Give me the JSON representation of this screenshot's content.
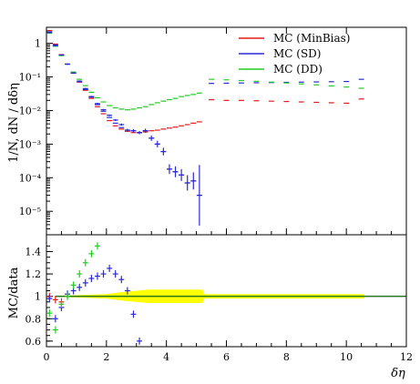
{
  "chart_data": [
    {
      "panel": "main",
      "type": "scatter",
      "ylabel": "1/N, dN / dδη",
      "yscale": "log",
      "xlim": [
        0,
        12
      ],
      "ylim": [
        2e-06,
        3
      ],
      "ytick_labels": [
        "1",
        "10⁻¹",
        "10⁻²",
        "10⁻³",
        "10⁻⁴",
        "10⁻⁵"
      ],
      "ytick_values": [
        1,
        0.1,
        0.01,
        0.001,
        0.0001,
        1e-05
      ],
      "legend_position": "top-right",
      "data_series": {
        "x": [
          0.1,
          0.3,
          0.5,
          0.7,
          0.9,
          1.1,
          1.3,
          1.5,
          1.7,
          1.9,
          2.1,
          2.3,
          2.5,
          2.7,
          2.9,
          3.1,
          3.3,
          3.5,
          3.7,
          3.9,
          4.1,
          4.3,
          4.5,
          4.7,
          4.9,
          5.1
        ],
        "y": [
          2.1,
          0.85,
          0.45,
          0.24,
          0.13,
          0.075,
          0.045,
          0.026,
          0.016,
          0.0105,
          0.0072,
          0.0052,
          0.0038,
          0.0026,
          0.0025,
          0.0022,
          0.0025,
          0.0015,
          0.001,
          0.0006,
          0.00018,
          0.00015,
          0.00012,
          7e-05,
          8e-05,
          3e-05
        ],
        "yerr_factor": [
          1.05,
          1.05,
          1.05,
          1.05,
          1.05,
          1.05,
          1.05,
          1.05,
          1.05,
          1.06,
          1.06,
          1.07,
          1.08,
          1.1,
          1.12,
          1.12,
          1.15,
          1.2,
          1.25,
          1.3,
          1.4,
          1.45,
          1.5,
          1.7,
          1.8,
          8.0
        ]
      },
      "series": [
        {
          "name": "MC (MinBias)",
          "color": "#e41a1c",
          "x": [
            0.1,
            0.3,
            0.5,
            0.7,
            0.9,
            1.1,
            1.3,
            1.5,
            1.7,
            1.9,
            2.1,
            2.3,
            2.5,
            2.7,
            2.9,
            3.1,
            3.3,
            3.5,
            3.7,
            3.9,
            4.1,
            4.3,
            4.5,
            4.7,
            4.9,
            5.1,
            5.5,
            6.0,
            6.5,
            7.0,
            7.5,
            8.0,
            8.5,
            9.0,
            9.5,
            10.0,
            10.5
          ],
          "y": [
            2.4,
            0.95,
            0.46,
            0.24,
            0.13,
            0.07,
            0.04,
            0.023,
            0.013,
            0.008,
            0.005,
            0.0035,
            0.0028,
            0.0024,
            0.0022,
            0.0022,
            0.0023,
            0.0025,
            0.0026,
            0.0028,
            0.003,
            0.0032,
            0.0035,
            0.0038,
            0.0042,
            0.0046,
            0.021,
            0.02,
            0.02,
            0.0195,
            0.019,
            0.0185,
            0.018,
            0.0175,
            0.017,
            0.0165,
            0.022
          ]
        },
        {
          "name": "MC (SD)",
          "color": "#2a2ad4",
          "x": [
            0.1,
            0.3,
            0.5,
            0.7,
            0.9,
            1.1,
            1.3,
            1.5,
            1.7,
            1.9,
            2.1,
            2.3,
            2.5,
            2.7,
            2.9,
            3.1,
            3.3,
            3.5,
            3.7,
            3.9,
            4.1,
            4.3,
            4.5,
            4.7,
            4.9,
            5.1,
            5.5,
            6.0,
            6.5,
            7.0,
            7.5,
            8.0,
            8.5,
            9.0,
            9.5,
            10.0,
            10.5
          ],
          "y": [
            2.2,
            0.9,
            0.45,
            0.24,
            0.13,
            0.072,
            0.042,
            0.025,
            0.015,
            0.0095,
            0.0062,
            0.0042,
            0.0031,
            0.0026,
            0.0025,
            0.0022,
            0.0025,
            0.0015,
            0.001,
            0.0006,
            0.00018,
            0.00015,
            0.00012,
            7e-05,
            8e-05,
            3e-05,
            0.064,
            0.065,
            0.066,
            0.067,
            0.068,
            0.069,
            0.07,
            0.071,
            0.072,
            0.073,
            0.085
          ]
        },
        {
          "name": "MC (DD)",
          "color": "#22cc22",
          "x": [
            0.1,
            0.3,
            0.5,
            0.7,
            0.9,
            1.1,
            1.3,
            1.5,
            1.7,
            1.9,
            2.1,
            2.3,
            2.5,
            2.7,
            2.9,
            3.1,
            3.3,
            3.5,
            3.7,
            3.9,
            4.1,
            4.3,
            4.5,
            4.7,
            4.9,
            5.1,
            5.5,
            6.0,
            6.5,
            7.0,
            7.5,
            8.0,
            8.5,
            9.0,
            9.5,
            10.0,
            10.5
          ],
          "y": [
            2.0,
            0.82,
            0.43,
            0.24,
            0.14,
            0.085,
            0.055,
            0.035,
            0.024,
            0.018,
            0.014,
            0.012,
            0.011,
            0.0105,
            0.011,
            0.012,
            0.013,
            0.015,
            0.017,
            0.019,
            0.021,
            0.023,
            0.026,
            0.028,
            0.03,
            0.033,
            0.085,
            0.082,
            0.078,
            0.074,
            0.07,
            0.066,
            0.062,
            0.058,
            0.054,
            0.05,
            0.046
          ]
        }
      ]
    },
    {
      "panel": "ratio",
      "type": "scatter",
      "xlabel": "δη",
      "ylabel": "MC/data",
      "xlim": [
        0,
        12
      ],
      "ylim": [
        0.55,
        1.55
      ],
      "xtick_labels": [
        "0",
        "2",
        "4",
        "6",
        "8",
        "10",
        "12"
      ],
      "xtick_values": [
        0,
        2,
        4,
        6,
        8,
        10,
        12
      ],
      "ytick_labels": [
        "0.6",
        "0.8",
        "1",
        "1.2",
        "1.4"
      ],
      "ytick_values": [
        0.6,
        0.8,
        1.0,
        1.2,
        1.4
      ],
      "band": {
        "color": "#ffff00",
        "x": [
          0.3,
          1.0,
          2.0,
          2.6,
          3.0,
          3.4,
          4.0,
          5.2,
          5.25,
          7.0,
          10.6
        ],
        "half_width": [
          0.005,
          0.01,
          0.02,
          0.04,
          0.05,
          0.06,
          0.06,
          0.06,
          0.02,
          0.02,
          0.02
        ]
      },
      "series": [
        {
          "name": "MC (MinBias)",
          "color": "#e41a1c",
          "x": [
            0.1,
            0.3,
            0.5
          ],
          "y": [
            1.0,
            0.97,
            0.95
          ]
        },
        {
          "name": "MC (SD)",
          "color": "#2a2ad4",
          "x": [
            0.1,
            0.3,
            0.5,
            0.7,
            0.9,
            1.1,
            1.3,
            1.5,
            1.7,
            1.9,
            2.1,
            2.3,
            2.5,
            2.7,
            2.9,
            3.1
          ],
          "y": [
            0.98,
            0.8,
            0.9,
            1.02,
            1.05,
            1.08,
            1.12,
            1.16,
            1.18,
            1.2,
            1.25,
            1.2,
            1.15,
            1.05,
            0.84,
            0.6
          ]
        },
        {
          "name": "MC (DD)",
          "color": "#22cc22",
          "x": [
            0.1,
            0.3,
            0.5,
            0.7,
            0.9,
            1.1,
            1.3,
            1.5,
            1.7
          ],
          "y": [
            0.85,
            0.7,
            0.93,
            1.0,
            1.1,
            1.2,
            1.3,
            1.38,
            1.45
          ]
        }
      ]
    }
  ]
}
